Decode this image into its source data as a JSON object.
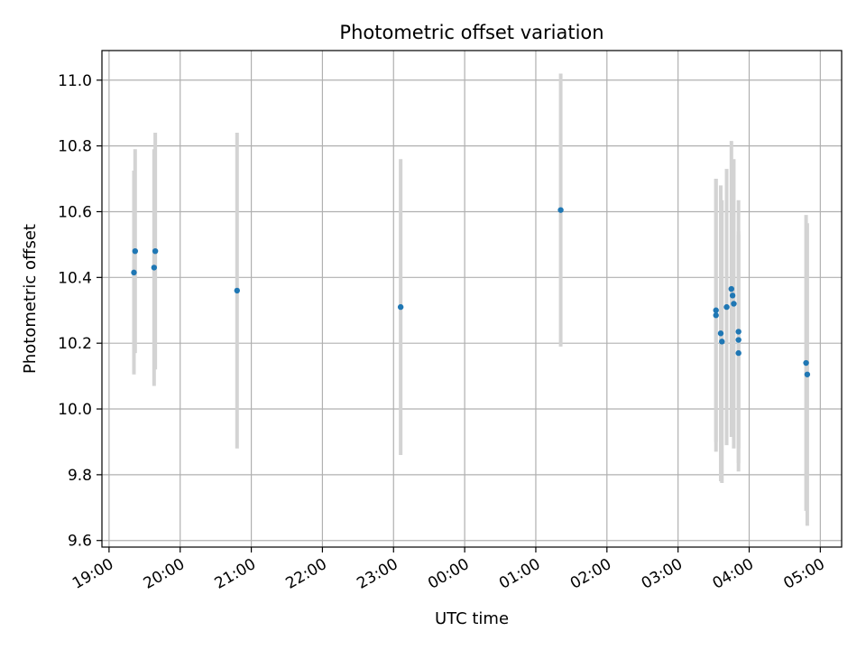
{
  "chart_data": {
    "type": "scatter",
    "title": "Photometric offset variation",
    "xlabel": "UTC time",
    "ylabel": "Photometric offset",
    "x_unit": "time of day (HH:MM UTC), crossing midnight",
    "xlim": [
      "18:54",
      "05:18"
    ],
    "ylim": [
      9.58,
      11.09
    ],
    "x_ticks": [
      "19:00",
      "20:00",
      "21:00",
      "22:00",
      "23:00",
      "00:00",
      "01:00",
      "02:00",
      "03:00",
      "04:00",
      "05:00"
    ],
    "y_ticks": [
      9.6,
      9.8,
      10.0,
      10.2,
      10.4,
      10.6,
      10.8,
      11.0
    ],
    "y_tick_labels": [
      "9.6",
      "9.8",
      "10.0",
      "10.2",
      "10.4",
      "10.6",
      "10.8",
      "11.0"
    ],
    "grid": true,
    "colors": {
      "marker": "#1f77b4",
      "errorbar": "#d3d3d3",
      "grid": "#b0b0b0",
      "frame": "#000000"
    },
    "points": [
      {
        "x": "19:22",
        "y": 10.48,
        "err": 0.31
      },
      {
        "x": "19:21",
        "y": 10.415,
        "err": 0.31
      },
      {
        "x": "19:39",
        "y": 10.48,
        "err": 0.36
      },
      {
        "x": "19:38",
        "y": 10.43,
        "err": 0.36
      },
      {
        "x": "20:48",
        "y": 10.36,
        "err": 0.48
      },
      {
        "x": "23:06",
        "y": 10.31,
        "err": 0.45
      },
      {
        "x": "01:21",
        "y": 10.605,
        "err": 0.415
      },
      {
        "x": "03:32",
        "y": 10.3,
        "err": 0.4
      },
      {
        "x": "03:32",
        "y": 10.285,
        "err": 0.415
      },
      {
        "x": "03:36",
        "y": 10.23,
        "err": 0.45
      },
      {
        "x": "03:37",
        "y": 10.205,
        "err": 0.43
      },
      {
        "x": "03:41",
        "y": 10.31,
        "err": 0.42
      },
      {
        "x": "03:45",
        "y": 10.365,
        "err": 0.45
      },
      {
        "x": "03:46",
        "y": 10.345,
        "err": 0.41
      },
      {
        "x": "03:47",
        "y": 10.32,
        "err": 0.44
      },
      {
        "x": "03:51",
        "y": 10.235,
        "err": 0.4
      },
      {
        "x": "03:51",
        "y": 10.21,
        "err": 0.33
      },
      {
        "x": "03:51",
        "y": 10.17,
        "err": 0.36
      },
      {
        "x": "04:48",
        "y": 10.14,
        "err": 0.45
      },
      {
        "x": "04:49",
        "y": 10.105,
        "err": 0.46
      }
    ]
  }
}
